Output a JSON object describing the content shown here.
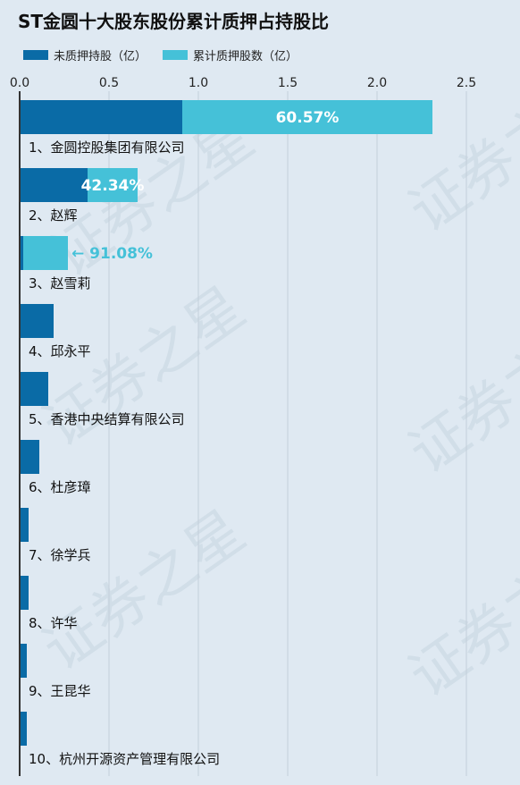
{
  "chart_data": {
    "type": "bar",
    "title": "ST金圆十大股东股份累计质押占持股比",
    "legend": [
      "未质押持股（亿）",
      "累计质押股数（亿）"
    ],
    "colors": {
      "unpledged": "#0a6ba6",
      "pledged": "#45c1d8",
      "axis": "#333333",
      "grid": "#c3cfda"
    },
    "xlim": [
      0,
      2.5
    ],
    "xticks": [
      "0.0",
      "0.5",
      "1.0",
      "1.5",
      "2.0",
      "2.5"
    ],
    "xtick_values": [
      0,
      0.5,
      1.0,
      1.5,
      2.0,
      2.5
    ],
    "categories": [
      "1、金圆控股集团有限公司",
      "2、赵辉",
      "3、赵雪莉",
      "4、邱永平",
      "5、香港中央结算有限公司",
      "6、杜彦璋",
      "7、徐学兵",
      "8、许华",
      "9、王昆华",
      "10、杭州开源资产管理有限公司"
    ],
    "series": [
      {
        "name": "未质押持股（亿）",
        "values": [
          0.91,
          0.38,
          0.02,
          0.19,
          0.16,
          0.11,
          0.05,
          0.05,
          0.04,
          0.04
        ]
      },
      {
        "name": "累计质押股数（亿）",
        "values": [
          1.4,
          0.28,
          0.25,
          0,
          0,
          0,
          0,
          0,
          0,
          0
        ]
      }
    ],
    "pledge_ratio_labels": [
      "60.57%",
      "42.34%",
      "← 91.08%",
      "",
      "",
      "",
      "",
      "",
      "",
      ""
    ]
  },
  "watermark_text": "证券之星"
}
